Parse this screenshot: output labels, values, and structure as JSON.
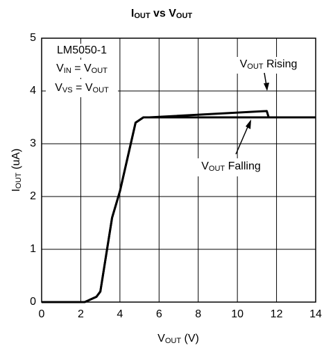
{
  "chart_data": {
    "type": "line",
    "title": [
      {
        "t": "I"
      },
      {
        "t": "OUT",
        "sub": true
      },
      {
        "t": " vs V"
      },
      {
        "t": "OUT",
        "sub": true
      }
    ],
    "xlabel": [
      {
        "t": "V"
      },
      {
        "t": "OUT",
        "sub": true
      },
      {
        "t": " (V)"
      }
    ],
    "ylabel": [
      {
        "t": "I"
      },
      {
        "t": "OUT",
        "sub": true
      },
      {
        "t": " (uA)"
      }
    ],
    "annotations": [
      [
        {
          "t": "LM5050-1"
        }
      ],
      [
        {
          "t": "V"
        },
        {
          "t": "IN",
          "sub": true
        },
        {
          "t": " = V"
        },
        {
          "t": "OUT",
          "sub": true
        }
      ],
      [
        {
          "t": "V"
        },
        {
          "t": "VS",
          "sub": true
        },
        {
          "t": " = V"
        },
        {
          "t": "OUT",
          "sub": true
        }
      ],
      [
        {
          "t": "V"
        },
        {
          "t": "OUT",
          "sub": true
        },
        {
          "t": " Rising"
        }
      ],
      [
        {
          "t": "V"
        },
        {
          "t": "OUT",
          "sub": true
        },
        {
          "t": " Falling"
        }
      ]
    ],
    "x": [
      0,
      2.2,
      2.8,
      3,
      3.6,
      4,
      4.8,
      5.2,
      5.5,
      11.5,
      11.6,
      14
    ],
    "series": [
      {
        "name": "Rising",
        "color": "#000000",
        "values": [
          0,
          0,
          0.1,
          0.2,
          1.6,
          2.1,
          3.4,
          3.5,
          3.5,
          3.62,
          3.5,
          3.5
        ]
      },
      {
        "name": "Falling",
        "color": "#000000",
        "values": [
          0,
          0,
          0.1,
          0.2,
          1.6,
          2.1,
          3.4,
          3.5,
          3.5,
          3.5,
          3.5,
          3.5
        ]
      }
    ],
    "xlim": [
      0,
      14
    ],
    "xticks": [
      0,
      2,
      4,
      6,
      8,
      10,
      12,
      14
    ],
    "ylim": [
      0,
      5
    ],
    "yticks": [
      0,
      1,
      2,
      3,
      4,
      5
    ],
    "grid": true
  }
}
